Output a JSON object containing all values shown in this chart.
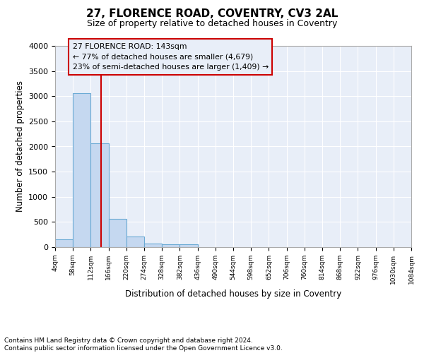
{
  "title": "27, FLORENCE ROAD, COVENTRY, CV3 2AL",
  "subtitle": "Size of property relative to detached houses in Coventry",
  "xlabel": "Distribution of detached houses by size in Coventry",
  "ylabel": "Number of detached properties",
  "bin_edges": [
    4,
    58,
    112,
    166,
    220,
    274,
    328,
    382,
    436,
    490,
    544,
    598,
    652,
    706,
    760,
    814,
    868,
    922,
    976,
    1030,
    1084
  ],
  "bar_heights": [
    150,
    3060,
    2070,
    565,
    210,
    65,
    50,
    50,
    0,
    0,
    0,
    0,
    0,
    0,
    0,
    0,
    0,
    0,
    0,
    0
  ],
  "bar_color": "#c5d8f0",
  "bar_edge_color": "#6aaad4",
  "property_size": 143,
  "property_line_color": "#cc0000",
  "annotation_text": "27 FLORENCE ROAD: 143sqm\n← 77% of detached houses are smaller (4,679)\n23% of semi-detached houses are larger (1,409) →",
  "annotation_box_edge_color": "#cc0000",
  "ylim": [
    0,
    4000
  ],
  "yticks": [
    0,
    500,
    1000,
    1500,
    2000,
    2500,
    3000,
    3500,
    4000
  ],
  "tick_labels": [
    "4sqm",
    "58sqm",
    "112sqm",
    "166sqm",
    "220sqm",
    "274sqm",
    "328sqm",
    "382sqm",
    "436sqm",
    "490sqm",
    "544sqm",
    "598sqm",
    "652sqm",
    "706sqm",
    "760sqm",
    "814sqm",
    "868sqm",
    "922sqm",
    "976sqm",
    "1030sqm",
    "1084sqm"
  ],
  "footer_text": "Contains HM Land Registry data © Crown copyright and database right 2024.\nContains public sector information licensed under the Open Government Licence v3.0.",
  "fig_background": "#ffffff",
  "plot_background": "#e8eef8",
  "grid_color": "#ffffff"
}
